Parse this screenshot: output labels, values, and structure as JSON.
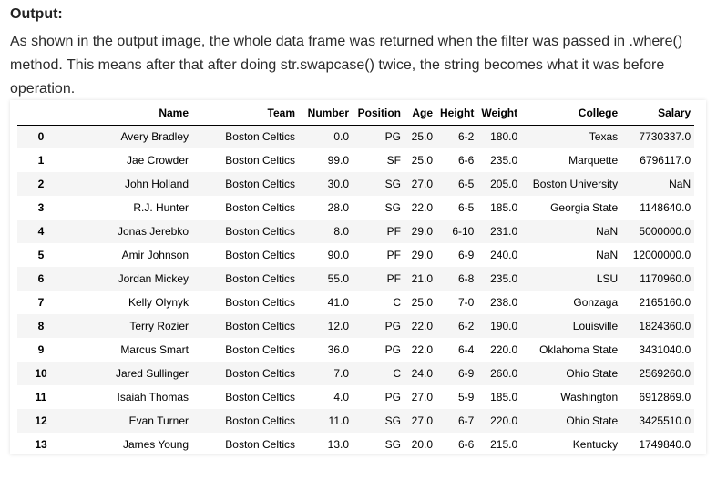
{
  "heading": "Output:",
  "paragraph": "As shown in the output image, the whole data frame was returned when the filter was passed in .where() method. This means after that after doing str.swapcase() twice, the string becomes what it was before operation.",
  "table": {
    "columns": [
      "",
      "Name",
      "Team",
      "Number",
      "Position",
      "Age",
      "Height",
      "Weight",
      "College",
      "Salary"
    ],
    "rows": [
      [
        "0",
        "Avery Bradley",
        "Boston Celtics",
        "0.0",
        "PG",
        "25.0",
        "6-2",
        "180.0",
        "Texas",
        "7730337.0"
      ],
      [
        "1",
        "Jae Crowder",
        "Boston Celtics",
        "99.0",
        "SF",
        "25.0",
        "6-6",
        "235.0",
        "Marquette",
        "6796117.0"
      ],
      [
        "2",
        "John Holland",
        "Boston Celtics",
        "30.0",
        "SG",
        "27.0",
        "6-5",
        "205.0",
        "Boston University",
        "NaN"
      ],
      [
        "3",
        "R.J. Hunter",
        "Boston Celtics",
        "28.0",
        "SG",
        "22.0",
        "6-5",
        "185.0",
        "Georgia State",
        "1148640.0"
      ],
      [
        "4",
        "Jonas Jerebko",
        "Boston Celtics",
        "8.0",
        "PF",
        "29.0",
        "6-10",
        "231.0",
        "NaN",
        "5000000.0"
      ],
      [
        "5",
        "Amir Johnson",
        "Boston Celtics",
        "90.0",
        "PF",
        "29.0",
        "6-9",
        "240.0",
        "NaN",
        "12000000.0"
      ],
      [
        "6",
        "Jordan Mickey",
        "Boston Celtics",
        "55.0",
        "PF",
        "21.0",
        "6-8",
        "235.0",
        "LSU",
        "1170960.0"
      ],
      [
        "7",
        "Kelly Olynyk",
        "Boston Celtics",
        "41.0",
        "C",
        "25.0",
        "7-0",
        "238.0",
        "Gonzaga",
        "2165160.0"
      ],
      [
        "8",
        "Terry Rozier",
        "Boston Celtics",
        "12.0",
        "PG",
        "22.0",
        "6-2",
        "190.0",
        "Louisville",
        "1824360.0"
      ],
      [
        "9",
        "Marcus Smart",
        "Boston Celtics",
        "36.0",
        "PG",
        "22.0",
        "6-4",
        "220.0",
        "Oklahoma State",
        "3431040.0"
      ],
      [
        "10",
        "Jared Sullinger",
        "Boston Celtics",
        "7.0",
        "C",
        "24.0",
        "6-9",
        "260.0",
        "Ohio State",
        "2569260.0"
      ],
      [
        "11",
        "Isaiah Thomas",
        "Boston Celtics",
        "4.0",
        "PG",
        "27.0",
        "5-9",
        "185.0",
        "Washington",
        "6912869.0"
      ],
      [
        "12",
        "Evan Turner",
        "Boston Celtics",
        "11.0",
        "SG",
        "27.0",
        "6-7",
        "220.0",
        "Ohio State",
        "3425510.0"
      ],
      [
        "13",
        "James Young",
        "Boston Celtics",
        "13.0",
        "SG",
        "20.0",
        "6-6",
        "215.0",
        "Kentucky",
        "1749840.0"
      ]
    ]
  }
}
